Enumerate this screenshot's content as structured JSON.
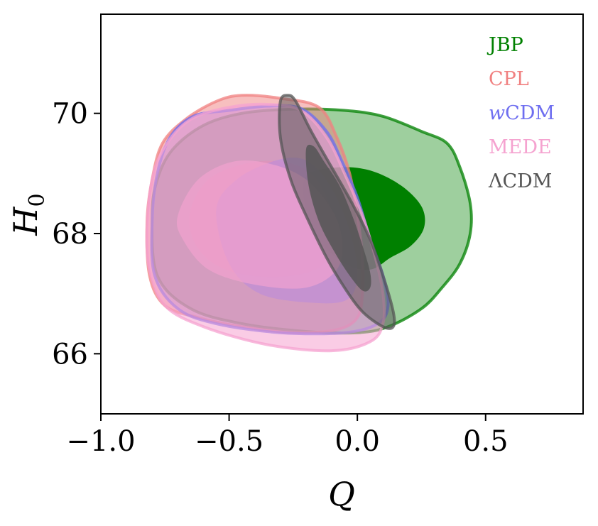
{
  "chart_data": {
    "type": "contour",
    "xlabel": "Q",
    "ylabel": "H",
    "ylabel_sub": "0",
    "xlim": [
      -1.0,
      0.88
    ],
    "ylim": [
      65.0,
      71.65
    ],
    "x_ticks": [
      {
        "value": -1.0,
        "label": "−1.0"
      },
      {
        "value": -0.5,
        "label": "−0.5"
      },
      {
        "value": 0.0,
        "label": "0.0"
      },
      {
        "value": 0.5,
        "label": "0.5"
      }
    ],
    "y_ticks": [
      {
        "value": 66,
        "label": "66"
      },
      {
        "value": 68,
        "label": "68"
      },
      {
        "value": 70,
        "label": "70"
      }
    ],
    "legend_position": "top-right",
    "series": [
      {
        "name": "JBP",
        "color": "#008000",
        "outer_fill_opacity": 0.38,
        "inner_fill_opacity": 1.0,
        "outer": [
          [
            -0.8,
            68.3
          ],
          [
            -0.78,
            68.9
          ],
          [
            -0.72,
            69.4
          ],
          [
            -0.6,
            69.8
          ],
          [
            -0.45,
            70.0
          ],
          [
            -0.25,
            70.07
          ],
          [
            -0.05,
            70.05
          ],
          [
            0.1,
            69.95
          ],
          [
            0.25,
            69.7
          ],
          [
            0.35,
            69.5
          ],
          [
            0.4,
            69.1
          ],
          [
            0.44,
            68.5
          ],
          [
            0.44,
            68.0
          ],
          [
            0.4,
            67.5
          ],
          [
            0.33,
            67.1
          ],
          [
            0.25,
            66.75
          ],
          [
            0.12,
            66.45
          ],
          [
            0.0,
            66.35
          ],
          [
            -0.2,
            66.37
          ],
          [
            -0.45,
            66.5
          ],
          [
            -0.65,
            66.75
          ],
          [
            -0.78,
            67.3
          ]
        ],
        "inner": [
          [
            -0.2,
            68.95
          ],
          [
            -0.08,
            69.1
          ],
          [
            0.05,
            69.05
          ],
          [
            0.17,
            68.8
          ],
          [
            0.25,
            68.45
          ],
          [
            0.26,
            68.1
          ],
          [
            0.21,
            67.8
          ],
          [
            0.13,
            67.6
          ],
          [
            0.05,
            67.4
          ],
          [
            -0.05,
            67.5
          ],
          [
            -0.15,
            67.9
          ],
          [
            -0.2,
            68.4
          ]
        ]
      },
      {
        "name": "CPL",
        "color": "#f08080",
        "outer_fill_opacity": 0.5,
        "inner_fill_opacity": 0.6,
        "outer": [
          [
            -0.82,
            68.2
          ],
          [
            -0.8,
            68.9
          ],
          [
            -0.76,
            69.5
          ],
          [
            -0.67,
            69.9
          ],
          [
            -0.55,
            70.2
          ],
          [
            -0.45,
            70.3
          ],
          [
            -0.3,
            70.25
          ],
          [
            -0.15,
            70.1
          ],
          [
            -0.08,
            69.6
          ],
          [
            -0.03,
            69.0
          ],
          [
            0.0,
            68.3
          ],
          [
            0.02,
            67.6
          ],
          [
            0.02,
            67.0
          ],
          [
            0.0,
            66.6
          ],
          [
            -0.08,
            66.4
          ],
          [
            -0.25,
            66.35
          ],
          [
            -0.45,
            66.45
          ],
          [
            -0.62,
            66.6
          ],
          [
            -0.75,
            66.8
          ],
          [
            -0.81,
            67.3
          ]
        ],
        "inner": [
          [
            -0.65,
            68.4
          ],
          [
            -0.58,
            68.9
          ],
          [
            -0.45,
            69.15
          ],
          [
            -0.3,
            69.2
          ],
          [
            -0.18,
            69.0
          ],
          [
            -0.11,
            68.5
          ],
          [
            -0.09,
            68.0
          ],
          [
            -0.13,
            67.5
          ],
          [
            -0.25,
            67.3
          ],
          [
            -0.42,
            67.3
          ],
          [
            -0.56,
            67.5
          ],
          [
            -0.64,
            67.9
          ]
        ]
      },
      {
        "name": "wCDM",
        "name_italic_prefix": "w",
        "name_rest": "CDM",
        "color": "#6e6ef0",
        "outer_fill_opacity": 0.3,
        "inner_fill_opacity": 0.55,
        "outer": [
          [
            -0.8,
            68.2
          ],
          [
            -0.78,
            69.0
          ],
          [
            -0.73,
            69.6
          ],
          [
            -0.64,
            69.95
          ],
          [
            -0.5,
            70.05
          ],
          [
            -0.35,
            70.12
          ],
          [
            -0.22,
            70.08
          ],
          [
            -0.12,
            69.7
          ],
          [
            -0.06,
            69.2
          ],
          [
            0.0,
            68.6
          ],
          [
            0.05,
            67.9
          ],
          [
            0.1,
            67.3
          ],
          [
            0.12,
            66.8
          ],
          [
            0.08,
            66.5
          ],
          [
            -0.05,
            66.35
          ],
          [
            -0.3,
            66.35
          ],
          [
            -0.55,
            66.5
          ],
          [
            -0.7,
            66.75
          ],
          [
            -0.79,
            67.3
          ]
        ],
        "inner": [
          [
            -0.55,
            68.4
          ],
          [
            -0.47,
            68.9
          ],
          [
            -0.33,
            69.2
          ],
          [
            -0.22,
            69.25
          ],
          [
            -0.14,
            69.0
          ],
          [
            -0.07,
            68.5
          ],
          [
            -0.02,
            67.9
          ],
          [
            0.0,
            67.3
          ],
          [
            -0.04,
            66.9
          ],
          [
            -0.18,
            66.85
          ],
          [
            -0.38,
            67.0
          ],
          [
            -0.5,
            67.5
          ]
        ]
      },
      {
        "name": "MEDE",
        "color": "#f5a3d0",
        "outer_fill_opacity": 0.55,
        "inner_fill_opacity": 0.65,
        "outer": [
          [
            -0.82,
            68.1
          ],
          [
            -0.8,
            68.9
          ],
          [
            -0.75,
            69.45
          ],
          [
            -0.65,
            69.9
          ],
          [
            -0.5,
            70.1
          ],
          [
            -0.35,
            70.15
          ],
          [
            -0.22,
            70.05
          ],
          [
            -0.12,
            69.6
          ],
          [
            -0.05,
            69.0
          ],
          [
            0.02,
            68.3
          ],
          [
            0.07,
            67.6
          ],
          [
            0.1,
            67.0
          ],
          [
            0.1,
            66.5
          ],
          [
            0.05,
            66.2
          ],
          [
            -0.1,
            66.05
          ],
          [
            -0.35,
            66.15
          ],
          [
            -0.6,
            66.45
          ],
          [
            -0.75,
            66.8
          ],
          [
            -0.81,
            67.4
          ]
        ],
        "inner": [
          [
            -0.7,
            68.3
          ],
          [
            -0.62,
            68.9
          ],
          [
            -0.48,
            69.2
          ],
          [
            -0.33,
            69.15
          ],
          [
            -0.2,
            68.9
          ],
          [
            -0.1,
            68.4
          ],
          [
            -0.06,
            67.9
          ],
          [
            -0.08,
            67.4
          ],
          [
            -0.2,
            67.1
          ],
          [
            -0.4,
            67.15
          ],
          [
            -0.58,
            67.4
          ],
          [
            -0.68,
            67.9
          ]
        ]
      },
      {
        "name": "ΛCDM",
        "color": "#555555",
        "outer_fill_opacity": 0.5,
        "inner_fill_opacity": 0.85,
        "outer": [
          [
            -0.3,
            70.2
          ],
          [
            -0.27,
            70.3
          ],
          [
            -0.24,
            70.2
          ],
          [
            -0.18,
            69.7
          ],
          [
            -0.1,
            69.1
          ],
          [
            -0.02,
            68.5
          ],
          [
            0.05,
            67.9
          ],
          [
            0.1,
            67.3
          ],
          [
            0.14,
            66.7
          ],
          [
            0.14,
            66.45
          ],
          [
            0.1,
            66.45
          ],
          [
            0.02,
            66.7
          ],
          [
            -0.05,
            67.1
          ],
          [
            -0.12,
            67.6
          ],
          [
            -0.2,
            68.3
          ],
          [
            -0.26,
            68.9
          ],
          [
            -0.3,
            69.6
          ]
        ],
        "inner": [
          [
            -0.2,
            69.4
          ],
          [
            -0.17,
            69.45
          ],
          [
            -0.13,
            69.2
          ],
          [
            -0.07,
            68.8
          ],
          [
            -0.02,
            68.3
          ],
          [
            0.02,
            67.8
          ],
          [
            0.05,
            67.35
          ],
          [
            0.05,
            67.1
          ],
          [
            0.02,
            67.05
          ],
          [
            -0.03,
            67.3
          ],
          [
            -0.09,
            67.7
          ],
          [
            -0.15,
            68.2
          ],
          [
            -0.19,
            68.8
          ]
        ]
      }
    ]
  }
}
